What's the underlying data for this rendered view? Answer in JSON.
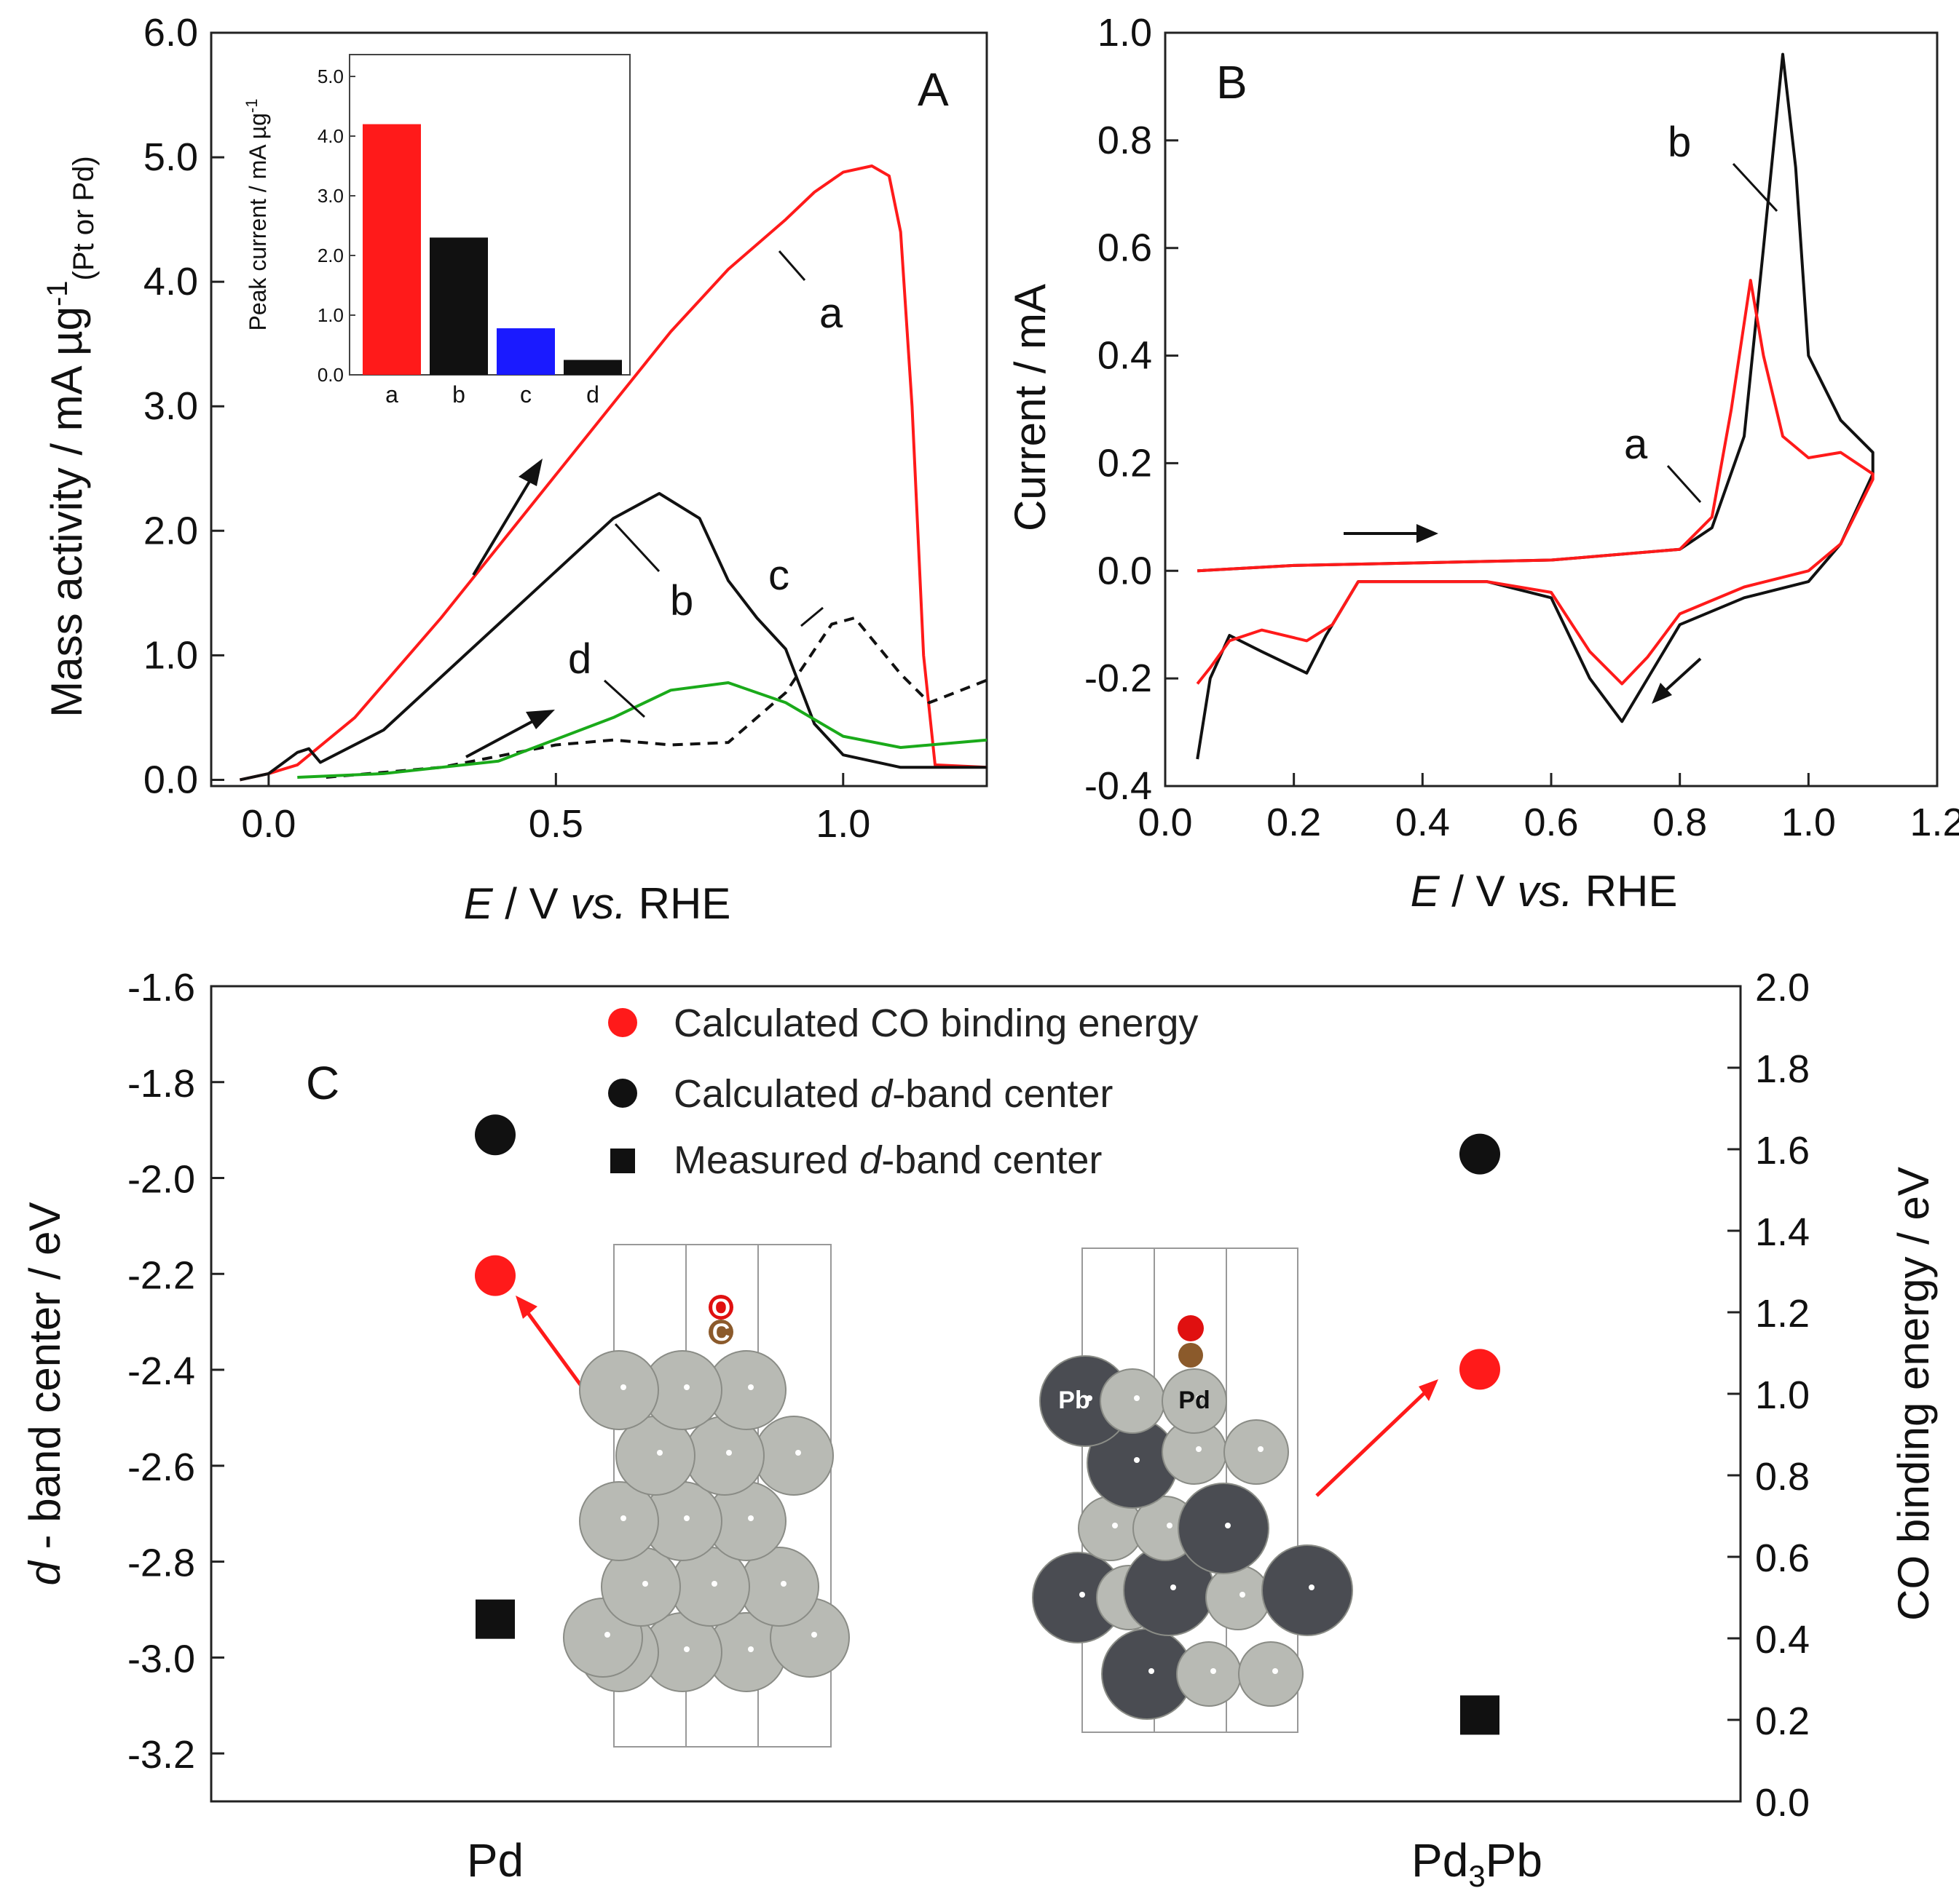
{
  "colors": {
    "red": "#ff1a1a",
    "black": "#111111",
    "blue": "#1a1aff",
    "green": "#1aaa1a",
    "grey": "#b8bab4",
    "dark": "#4a4c52"
  },
  "chart_data": [
    {
      "panel": "A",
      "type": "line",
      "xlabel_e": "E",
      "xlabel_rest": " / V ",
      "xlabel_vs": "vs.",
      "xlabel_rhe": " RHE",
      "ylabel_main": "Mass activity / mA µg",
      "ylabel_sup": "-1",
      "ylabel_sub": "(Pt or Pd)",
      "xlim": [
        -0.1,
        1.25
      ],
      "ylim": [
        -0.05,
        6.0
      ],
      "xticks": [
        "0.0",
        "0.5",
        "1.0"
      ],
      "yticks": [
        "0.0",
        "1.0",
        "2.0",
        "3.0",
        "4.0",
        "5.0",
        "6.0"
      ],
      "series": [
        {
          "name": "a",
          "style": "solid",
          "color": "red",
          "x": [
            -0.05,
            0.0,
            0.05,
            0.15,
            0.3,
            0.5,
            0.7,
            0.8,
            0.9,
            0.95,
            1.0,
            1.05,
            1.08,
            1.1,
            1.12,
            1.14,
            1.16,
            1.25
          ],
          "y": [
            0.0,
            0.05,
            0.12,
            0.5,
            1.3,
            2.45,
            3.6,
            4.1,
            4.5,
            4.72,
            4.88,
            4.93,
            4.85,
            4.4,
            3.0,
            1.0,
            0.12,
            0.1
          ]
        },
        {
          "name": "b",
          "style": "solid",
          "color": "black",
          "x": [
            -0.05,
            0.0,
            0.05,
            0.07,
            0.09,
            0.2,
            0.4,
            0.6,
            0.68,
            0.75,
            0.8,
            0.85,
            0.9,
            0.95,
            1.0,
            1.1,
            1.25
          ],
          "y": [
            0.0,
            0.05,
            0.22,
            0.25,
            0.14,
            0.4,
            1.25,
            2.1,
            2.3,
            2.1,
            1.6,
            1.3,
            1.05,
            0.45,
            0.2,
            0.1,
            0.1
          ]
        },
        {
          "name": "c",
          "style": "dashed",
          "color": "black",
          "x": [
            0.1,
            0.3,
            0.5,
            0.6,
            0.7,
            0.8,
            0.9,
            0.98,
            1.02,
            1.1,
            1.15,
            1.25
          ],
          "y": [
            0.02,
            0.1,
            0.28,
            0.32,
            0.28,
            0.3,
            0.7,
            1.25,
            1.3,
            0.85,
            0.62,
            0.8
          ]
        },
        {
          "name": "d",
          "style": "solid",
          "color": "green",
          "x": [
            0.05,
            0.2,
            0.4,
            0.6,
            0.7,
            0.8,
            0.9,
            1.0,
            1.1,
            1.25
          ],
          "y": [
            0.02,
            0.05,
            0.15,
            0.5,
            0.72,
            0.78,
            0.62,
            0.35,
            0.26,
            0.32
          ]
        }
      ],
      "inset": {
        "type": "bar",
        "categories": [
          "a",
          "b",
          "c",
          "d"
        ],
        "values": [
          4.2,
          2.3,
          0.78,
          0.25
        ],
        "colors": [
          "red",
          "black",
          "blue",
          "black"
        ],
        "ylabel": "Peak current / mA µg",
        "ylabel_sup": "-1",
        "ylim": [
          0,
          5
        ],
        "yticks": [
          "0.0",
          "1.0",
          "2.0",
          "3.0",
          "4.0",
          "5.0"
        ]
      }
    },
    {
      "panel": "B",
      "type": "line",
      "xlabel_e": "E",
      "xlabel_rest": " / V ",
      "xlabel_vs": "vs.",
      "xlabel_rhe": " RHE",
      "ylabel": "Current / mA",
      "xlim": [
        0.0,
        1.2
      ],
      "ylim": [
        -0.4,
        1.0
      ],
      "xticks": [
        "0.0",
        "0.2",
        "0.4",
        "0.6",
        "0.8",
        "1.0",
        "1.2"
      ],
      "yticks": [
        "-0.4",
        "-0.2",
        "0.0",
        "0.2",
        "0.4",
        "0.6",
        "0.8",
        "1.0"
      ],
      "series": [
        {
          "name": "b",
          "color": "black",
          "x": [
            0.05,
            0.2,
            0.4,
            0.6,
            0.8,
            0.85,
            0.9,
            0.93,
            0.96,
            0.98,
            1.0,
            1.05,
            1.1,
            1.1,
            1.05,
            1.0,
            0.9,
            0.8,
            0.75,
            0.71,
            0.66,
            0.6,
            0.5,
            0.3,
            0.25,
            0.22,
            0.15,
            0.1,
            0.07,
            0.05
          ],
          "y": [
            0.0,
            0.01,
            0.015,
            0.02,
            0.04,
            0.08,
            0.25,
            0.6,
            0.96,
            0.75,
            0.4,
            0.28,
            0.22,
            0.18,
            0.05,
            -0.02,
            -0.05,
            -0.1,
            -0.2,
            -0.28,
            -0.2,
            -0.05,
            -0.02,
            -0.02,
            -0.12,
            -0.19,
            -0.15,
            -0.12,
            -0.2,
            -0.35
          ]
        },
        {
          "name": "a",
          "color": "red",
          "x": [
            0.05,
            0.2,
            0.4,
            0.6,
            0.8,
            0.85,
            0.88,
            0.91,
            0.93,
            0.96,
            1.0,
            1.05,
            1.1,
            1.1,
            1.05,
            1.0,
            0.9,
            0.8,
            0.75,
            0.71,
            0.66,
            0.6,
            0.5,
            0.3,
            0.26,
            0.22,
            0.15,
            0.1,
            0.07,
            0.05
          ],
          "y": [
            0.0,
            0.01,
            0.015,
            0.02,
            0.04,
            0.1,
            0.3,
            0.54,
            0.4,
            0.25,
            0.21,
            0.22,
            0.18,
            0.17,
            0.05,
            0.0,
            -0.03,
            -0.08,
            -0.16,
            -0.21,
            -0.15,
            -0.04,
            -0.02,
            -0.02,
            -0.1,
            -0.13,
            -0.11,
            -0.13,
            -0.18,
            -0.21
          ]
        }
      ]
    },
    {
      "panel": "C",
      "type": "scatter",
      "ylabel_left_d": "d",
      "ylabel_left_rest": " - band center / eV",
      "ylabel_right": "CO binding energy / eV",
      "ylim_left": [
        -3.3,
        -1.6
      ],
      "ylim_right": [
        0.0,
        2.0
      ],
      "yticks_left": [
        "-1.6",
        "-1.8",
        "-2.0",
        "-2.2",
        "-2.4",
        "-2.6",
        "-2.8",
        "-3.0",
        "-3.2"
      ],
      "yticks_right": [
        "0.0",
        "0.2",
        "0.4",
        "0.6",
        "0.8",
        "1.0",
        "1.2",
        "1.4",
        "1.6",
        "1.8",
        "2.0"
      ],
      "categories": [
        "Pd",
        "Pd3Pb"
      ],
      "cat_pd3pb_main": "Pd",
      "cat_pd3pb_sub": "3",
      "cat_pd3pb_end": "Pb",
      "series": [
        {
          "name": "Calculated CO binding energy",
          "marker": "circle",
          "color": "red",
          "axis": "right",
          "values": [
            1.29,
            1.06
          ]
        },
        {
          "name": "Calculated d-band center",
          "marker": "circle",
          "color": "black",
          "axis": "left",
          "values": [
            -1.91,
            -1.95
          ]
        },
        {
          "name": "Measured d-band center",
          "marker": "square",
          "color": "black",
          "axis": "left",
          "values": [
            -2.92,
            -3.12
          ]
        }
      ],
      "legend": {
        "l1": "Calculated CO binding energy",
        "l2_pre": "Calculated ",
        "l2_d": "d",
        "l2_post": "-band center",
        "l3_pre": "Measured ",
        "l3_d": "d",
        "l3_post": "-band center"
      },
      "atoms": {
        "o": "O",
        "c": "C",
        "pb": "Pb",
        "pd": "Pd"
      }
    }
  ],
  "panel_labels": {
    "A": "A",
    "B": "B",
    "C": "C"
  },
  "curve_labels": {
    "a": "a",
    "b": "b",
    "c": "c",
    "d": "d"
  }
}
